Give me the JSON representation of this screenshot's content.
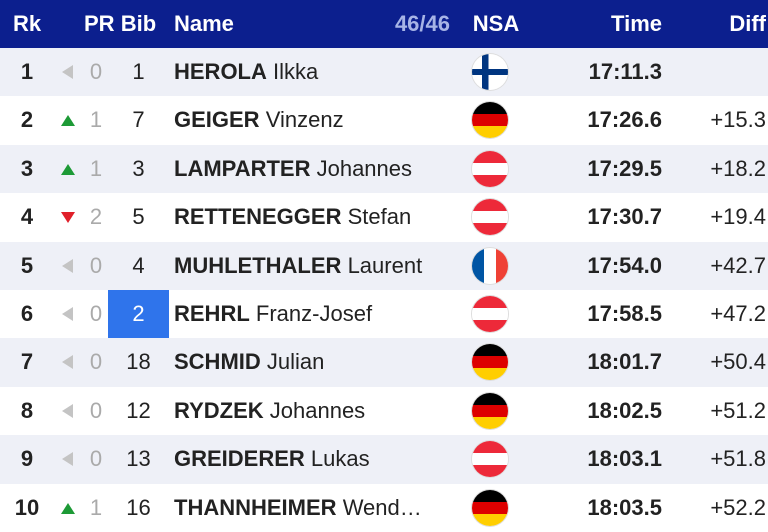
{
  "header": {
    "rank": "Rk",
    "pr": "PR",
    "bib": "Bib",
    "name": "Name",
    "count": "46/46",
    "nsa": "NSA",
    "time": "Time",
    "diff": "Diff"
  },
  "rows": [
    {
      "rank": "1",
      "pr": "0",
      "bib": "1",
      "last": "HEROLA",
      "first": "Ilkka",
      "time": "17:11.3"
    },
    {
      "rank": "2",
      "pr": "1",
      "bib": "7",
      "last": "GEIGER",
      "first": "Vinzenz",
      "time": "17:26.6",
      "diff": "+15.3"
    },
    {
      "rank": "3",
      "pr": "1",
      "bib": "3",
      "last": "LAMPARTER",
      "first": "Johannes",
      "time": "17:29.5",
      "diff": "+18.2"
    },
    {
      "rank": "4",
      "pr": "2",
      "bib": "5",
      "last": "RETTENEGGER",
      "first": "Stefan",
      "time": "17:30.7",
      "diff": "+19.4"
    },
    {
      "rank": "5",
      "pr": "0",
      "bib": "4",
      "last": "MUHLETHALER",
      "first": "Laurent",
      "time": "17:54.0",
      "diff": "+42.7"
    },
    {
      "rank": "6",
      "pr": "0",
      "bib": "2",
      "last": "REHRL",
      "first": "Franz-Josef",
      "time": "17:58.5",
      "diff": "+47.2"
    },
    {
      "rank": "7",
      "pr": "0",
      "bib": "18",
      "last": "SCHMID",
      "first": "Julian",
      "time": "18:01.7",
      "diff": "+50.4"
    },
    {
      "rank": "8",
      "pr": "0",
      "bib": "12",
      "last": "RYDZEK",
      "first": "Johannes",
      "time": "18:02.5",
      "diff": "+51.2"
    },
    {
      "rank": "9",
      "pr": "0",
      "bib": "13",
      "last": "GREIDERER",
      "first": "Lukas",
      "time": "18:03.1",
      "diff": "+51.8"
    },
    {
      "rank": "10",
      "pr": "1",
      "bib": "16",
      "last": "THANNHEIMER",
      "first": "Wend…",
      "time": "18:03.5",
      "diff": "+52.2"
    }
  ]
}
